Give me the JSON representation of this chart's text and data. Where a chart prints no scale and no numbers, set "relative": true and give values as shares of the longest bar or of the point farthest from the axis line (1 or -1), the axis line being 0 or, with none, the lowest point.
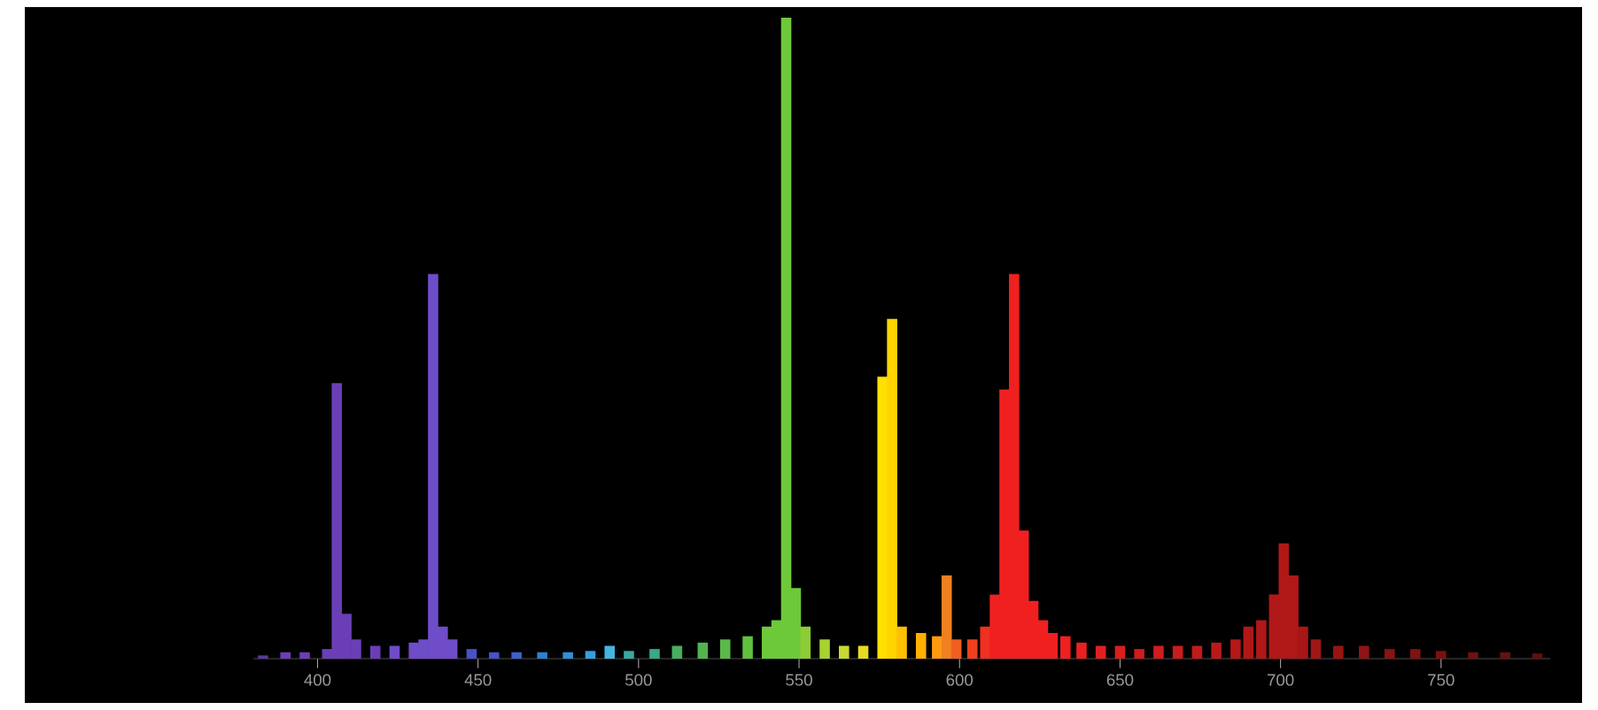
{
  "chart_data": {
    "type": "bar",
    "relative": true,
    "x": [
      383,
      390,
      396,
      403,
      406,
      409,
      412,
      418,
      424,
      430,
      433,
      436,
      439,
      442,
      448,
      455,
      462,
      470,
      478,
      485,
      491,
      497,
      505,
      512,
      520,
      527,
      534,
      540,
      543,
      546,
      549,
      552,
      558,
      564,
      570,
      576,
      579,
      582,
      588,
      593,
      596,
      599,
      604,
      608,
      611,
      614,
      617,
      620,
      623,
      626,
      629,
      633,
      638,
      644,
      650,
      656,
      662,
      668,
      674,
      680,
      686,
      690,
      694,
      698,
      701,
      704,
      707,
      711,
      718,
      726,
      734,
      742,
      750,
      760,
      770,
      780
    ],
    "values": [
      0.005,
      0.01,
      0.01,
      0.015,
      0.43,
      0.07,
      0.03,
      0.02,
      0.02,
      0.025,
      0.03,
      0.6,
      0.05,
      0.03,
      0.015,
      0.01,
      0.01,
      0.01,
      0.01,
      0.012,
      0.02,
      0.012,
      0.015,
      0.02,
      0.025,
      0.03,
      0.035,
      0.05,
      0.06,
      1.0,
      0.11,
      0.05,
      0.03,
      0.02,
      0.02,
      0.44,
      0.53,
      0.05,
      0.04,
      0.035,
      0.13,
      0.03,
      0.03,
      0.05,
      0.1,
      0.42,
      0.6,
      0.2,
      0.09,
      0.06,
      0.04,
      0.035,
      0.025,
      0.02,
      0.02,
      0.015,
      0.02,
      0.02,
      0.02,
      0.025,
      0.03,
      0.05,
      0.06,
      0.1,
      0.18,
      0.13,
      0.05,
      0.03,
      0.02,
      0.02,
      0.015,
      0.015,
      0.012,
      0.01,
      0.01,
      0.008
    ],
    "colors": [
      "#5a3a9a",
      "#6a3fb5",
      "#6a3fb5",
      "#6a3fb5",
      "#6a3fb5",
      "#6a3fb5",
      "#6a3fb5",
      "#6a3fb5",
      "#6f4cc8",
      "#6f4cc8",
      "#6f4cc8",
      "#6f4cc8",
      "#6f4cc8",
      "#6f4cc8",
      "#4a50c8",
      "#4a50c8",
      "#3f60cc",
      "#2f7fd0",
      "#2f90d8",
      "#35a0e0",
      "#44b5e0",
      "#3aa8a0",
      "#3aa88a",
      "#48ae60",
      "#52b450",
      "#5cb84a",
      "#62c040",
      "#6dc93a",
      "#6dc93a",
      "#6dc93a",
      "#6dc93a",
      "#8ccc35",
      "#a8d230",
      "#c8d830",
      "#e8dc20",
      "#ffe000",
      "#ffd400",
      "#ffc000",
      "#ffb000",
      "#ff9a10",
      "#f08020",
      "#f06020",
      "#f04020",
      "#f03020",
      "#f02020",
      "#f02020",
      "#f02020",
      "#f02020",
      "#f02020",
      "#f02020",
      "#f02020",
      "#f02020",
      "#e82020",
      "#e02020",
      "#d81e1e",
      "#d01c1c",
      "#d01c1c",
      "#c81c1c",
      "#c01a1a",
      "#b81a1a",
      "#b41818",
      "#b01818",
      "#b01818",
      "#b01818",
      "#b01818",
      "#b01818",
      "#a81616",
      "#a01616",
      "#981414",
      "#901414",
      "#881414",
      "#801212",
      "#781212",
      "#701010",
      "#681010",
      "#601010"
    ],
    "xlim": [
      380,
      784
    ],
    "xticks": [
      400,
      450,
      500,
      550,
      600,
      650,
      700,
      750
    ]
  }
}
